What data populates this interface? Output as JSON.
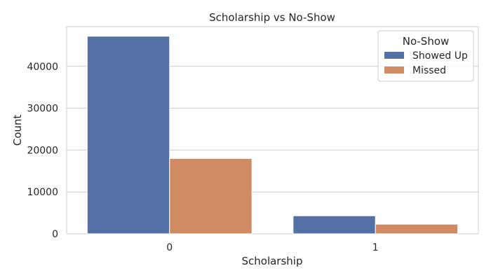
{
  "chart_data": {
    "type": "bar",
    "title": "Scholarship vs No-Show",
    "xlabel": "Scholarship",
    "ylabel": "Count",
    "categories": [
      "0",
      "1"
    ],
    "series": [
      {
        "name": "Showed Up",
        "values": [
          47200,
          4300
        ],
        "color": "#5471a5"
      },
      {
        "name": "Missed",
        "values": [
          18000,
          2300
        ],
        "color": "#d18b62"
      }
    ],
    "ylim": [
      0,
      49500
    ],
    "yticks": [
      0,
      10000,
      20000,
      30000,
      40000
    ],
    "grid": true,
    "legend": {
      "title": "No-Show",
      "position": "top-right"
    }
  }
}
